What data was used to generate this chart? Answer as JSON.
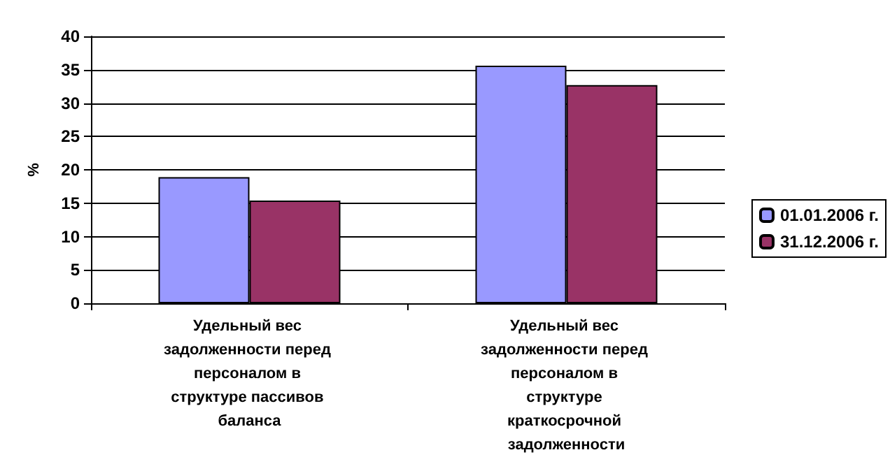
{
  "chart_data": {
    "type": "bar",
    "ylabel": "%",
    "categories": [
      "Удельный вес задолженности перед персоналом в структуре пассивов баланса",
      "Удельный вес задолженности перед персоналом в структуре краткосрочной задолженности"
    ],
    "series": [
      {
        "name": "01.01.2006 г.",
        "color": "#9999ff",
        "values": [
          18.9,
          35.6
        ]
      },
      {
        "name": "31.12.2006 г.",
        "color": "#993366",
        "values": [
          15.4,
          32.7
        ]
      }
    ],
    "ylim": [
      0,
      40
    ],
    "yticks": [
      0,
      5,
      10,
      15,
      20,
      25,
      30,
      35,
      40
    ],
    "grid": "y",
    "legend": "right"
  }
}
